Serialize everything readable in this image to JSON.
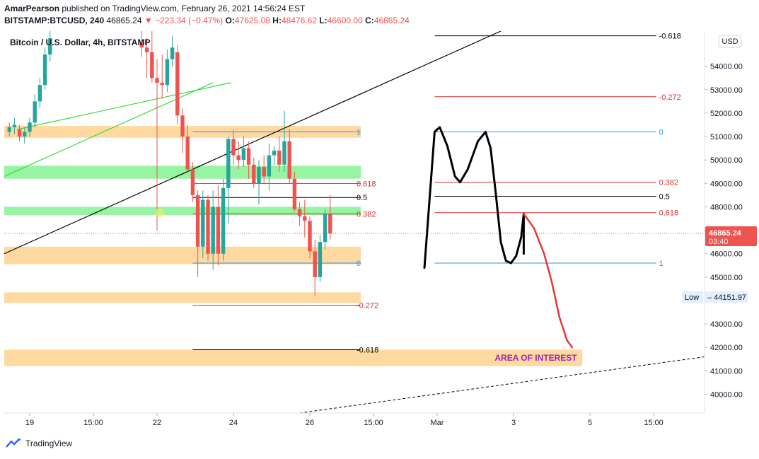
{
  "header": {
    "publisher_line_user": "AmarPearson",
    "publisher_line_rest": " published on TradingView.com, February 26, 2021 14:56:24 EST",
    "symbol": "BITSTAMP:BTCUSD, 240",
    "last": "46865.24",
    "arrow": "▼",
    "change": "−223.34 (−0.47%)",
    "o_label": "O:",
    "o": "47625.08",
    "h_label": "H:",
    "h": "48476.62",
    "l_label": "L:",
    "l": "46600.00",
    "c_label": "C:",
    "c": "46865.24"
  },
  "legend_title": "Bitcoin / U.S. Dollar, 4h, BITSTAMP",
  "footer": {
    "brand": "TradingView"
  },
  "colors": {
    "up": "#26a69a",
    "down": "#ef5350",
    "zone_orange": "#ffcc80",
    "zone_green": "#69f07a",
    "fib_blue": "#2196f3",
    "fib_red": "#d32f2f"
  },
  "chart_data": {
    "type": "candlestick",
    "currency": "USD",
    "y_ticks": [
      "40000.00",
      "41000.00",
      "42000.00",
      "43000.00",
      "45000.00",
      "46000.00",
      "47000.00",
      "48000.00",
      "49000.00",
      "50000.00",
      "51000.00",
      "52000.00",
      "53000.00",
      "54000.00"
    ],
    "ylim": [
      39200,
      55500
    ],
    "x_ticks": [
      {
        "label": "19",
        "x": 2.0
      },
      {
        "label": "15:00",
        "x": 4.5
      },
      {
        "label": "22",
        "x": 7.0
      },
      {
        "label": "24",
        "x": 10.0
      },
      {
        "label": "26",
        "x": 13.0
      },
      {
        "label": "15:00",
        "x": 15.5
      },
      {
        "label": "Mar",
        "x": 18.0
      },
      {
        "label": "3",
        "x": 21.0
      },
      {
        "label": "5",
        "x": 24.0
      },
      {
        "label": "15:00",
        "x": 26.5
      }
    ],
    "xlim": [
      1.0,
      28.5
    ],
    "candles": [
      {
        "x": 1.2,
        "o": 51200,
        "h": 51600,
        "l": 51000,
        "c": 51400
      },
      {
        "x": 1.4,
        "o": 51400,
        "h": 51800,
        "l": 51100,
        "c": 51500
      },
      {
        "x": 1.6,
        "o": 51300,
        "h": 51500,
        "l": 50800,
        "c": 51000
      },
      {
        "x": 1.8,
        "o": 51000,
        "h": 51400,
        "l": 50700,
        "c": 51200
      },
      {
        "x": 2.0,
        "o": 51200,
        "h": 51800,
        "l": 51000,
        "c": 51600
      },
      {
        "x": 2.2,
        "o": 51600,
        "h": 52800,
        "l": 51400,
        "c": 52500
      },
      {
        "x": 2.4,
        "o": 52500,
        "h": 53500,
        "l": 52200,
        "c": 53200
      },
      {
        "x": 2.6,
        "o": 53200,
        "h": 54800,
        "l": 53000,
        "c": 54500
      },
      {
        "x": 2.8,
        "o": 54500,
        "h": 55500,
        "l": 54200,
        "c": 55200
      },
      {
        "x": 6.4,
        "o": 55000,
        "h": 55500,
        "l": 54400,
        "c": 54800
      },
      {
        "x": 6.6,
        "o": 54800,
        "h": 55200,
        "l": 53500,
        "c": 54600
      },
      {
        "x": 6.8,
        "o": 54600,
        "h": 55500,
        "l": 53300,
        "c": 53500
      },
      {
        "x": 7.0,
        "o": 53500,
        "h": 54300,
        "l": 47000,
        "c": 53300
      },
      {
        "x": 7.2,
        "o": 53300,
        "h": 54500,
        "l": 52600,
        "c": 53200
      },
      {
        "x": 7.4,
        "o": 53200,
        "h": 54700,
        "l": 52900,
        "c": 54300
      },
      {
        "x": 7.6,
        "o": 54300,
        "h": 55300,
        "l": 54000,
        "c": 54800
      },
      {
        "x": 7.8,
        "o": 54600,
        "h": 54900,
        "l": 51500,
        "c": 51900
      },
      {
        "x": 8.0,
        "o": 51900,
        "h": 52200,
        "l": 50300,
        "c": 51000
      },
      {
        "x": 8.2,
        "o": 51000,
        "h": 51500,
        "l": 49500,
        "c": 49600
      },
      {
        "x": 8.4,
        "o": 49600,
        "h": 49900,
        "l": 48200,
        "c": 48500
      },
      {
        "x": 8.6,
        "o": 48500,
        "h": 48700,
        "l": 45000,
        "c": 46300
      },
      {
        "x": 8.8,
        "o": 46300,
        "h": 48700,
        "l": 45800,
        "c": 48300
      },
      {
        "x": 9.0,
        "o": 48300,
        "h": 48500,
        "l": 45700,
        "c": 46000
      },
      {
        "x": 9.2,
        "o": 46000,
        "h": 48700,
        "l": 45300,
        "c": 48000
      },
      {
        "x": 9.4,
        "o": 48000,
        "h": 48900,
        "l": 45500,
        "c": 46000
      },
      {
        "x": 9.6,
        "o": 46000,
        "h": 49200,
        "l": 45700,
        "c": 48800
      },
      {
        "x": 9.8,
        "o": 48800,
        "h": 51000,
        "l": 47300,
        "c": 50900
      },
      {
        "x": 10.0,
        "o": 50900,
        "h": 51300,
        "l": 49800,
        "c": 50200
      },
      {
        "x": 10.2,
        "o": 50200,
        "h": 50800,
        "l": 49600,
        "c": 50000
      },
      {
        "x": 10.4,
        "o": 50000,
        "h": 51000,
        "l": 49700,
        "c": 50500
      },
      {
        "x": 10.6,
        "o": 50500,
        "h": 50800,
        "l": 49200,
        "c": 49800
      },
      {
        "x": 10.8,
        "o": 49800,
        "h": 50100,
        "l": 48800,
        "c": 49000
      },
      {
        "x": 11.0,
        "o": 49000,
        "h": 50000,
        "l": 48100,
        "c": 49700
      },
      {
        "x": 11.2,
        "o": 49700,
        "h": 50200,
        "l": 49000,
        "c": 49300
      },
      {
        "x": 11.4,
        "o": 49300,
        "h": 50700,
        "l": 48700,
        "c": 50200
      },
      {
        "x": 11.6,
        "o": 50200,
        "h": 50600,
        "l": 49800,
        "c": 50400
      },
      {
        "x": 11.8,
        "o": 50400,
        "h": 51000,
        "l": 49500,
        "c": 49800
      },
      {
        "x": 12.0,
        "o": 49800,
        "h": 52100,
        "l": 49500,
        "c": 50800
      },
      {
        "x": 12.2,
        "o": 50800,
        "h": 51300,
        "l": 49000,
        "c": 49200
      },
      {
        "x": 12.4,
        "o": 49200,
        "h": 49500,
        "l": 47800,
        "c": 47900
      },
      {
        "x": 12.6,
        "o": 47900,
        "h": 48200,
        "l": 47200,
        "c": 47600
      },
      {
        "x": 12.8,
        "o": 47600,
        "h": 48300,
        "l": 46700,
        "c": 47400
      },
      {
        "x": 13.0,
        "o": 47400,
        "h": 47600,
        "l": 45800,
        "c": 46100
      },
      {
        "x": 13.2,
        "o": 46100,
        "h": 46600,
        "l": 44200,
        "c": 45000
      },
      {
        "x": 13.4,
        "o": 45000,
        "h": 46800,
        "l": 44800,
        "c": 46500
      },
      {
        "x": 13.6,
        "o": 46500,
        "h": 47900,
        "l": 46200,
        "c": 47700
      },
      {
        "x": 13.8,
        "o": 47700,
        "h": 48500,
        "l": 46600,
        "c": 46865
      }
    ],
    "zones": [
      {
        "color": "orange",
        "y1": 50950,
        "y2": 51450,
        "x1": 1.0,
        "x2": 15.0
      },
      {
        "color": "green",
        "y1": 49200,
        "y2": 49750,
        "x1": 1.0,
        "x2": 15.0
      },
      {
        "color": "green",
        "y1": 47650,
        "y2": 48000,
        "x1": 1.0,
        "x2": 15.0
      },
      {
        "color": "orange",
        "y1": 45550,
        "y2": 46300,
        "x1": 1.0,
        "x2": 15.0
      },
      {
        "color": "orange",
        "y1": 43900,
        "y2": 44350,
        "x1": 1.0,
        "x2": 15.0
      },
      {
        "color": "orange",
        "y1": 41200,
        "y2": 41900,
        "x1": 1.0,
        "x2": 23.7
      }
    ],
    "fib_left": [
      {
        "label": "1",
        "y": 51200,
        "color": "blue"
      },
      {
        "label": "0.618",
        "y": 49000,
        "color": "red"
      },
      {
        "label": "0.5",
        "y": 48400,
        "color": "black"
      },
      {
        "label": "0.382",
        "y": 47700,
        "color": "red"
      },
      {
        "label": "0",
        "y": 45600,
        "color": "blue"
      },
      {
        "label": "-0.272",
        "y": 43800,
        "color": "red"
      },
      {
        "label": "-0.618",
        "y": 41900,
        "color": "black"
      }
    ],
    "fib_right": [
      {
        "label": "-0.618",
        "y": 55300,
        "color": "black"
      },
      {
        "label": "-0.272",
        "y": 52700,
        "color": "red"
      },
      {
        "label": "0",
        "y": 51200,
        "color": "blue"
      },
      {
        "label": "0.382",
        "y": 49050,
        "color": "red"
      },
      {
        "label": "0.5",
        "y": 48450,
        "color": "black"
      },
      {
        "label": "0.618",
        "y": 47750,
        "color": "red"
      },
      {
        "label": "1",
        "y": 45600,
        "color": "blue"
      }
    ],
    "annotation_text": "AREA OF INTEREST",
    "last_price": {
      "label": "46865.24",
      "countdown": "03:40",
      "y": 46865.24
    },
    "low_marker": {
      "label": "Low",
      "value": "44151.97",
      "y": 44151.97
    },
    "m_pattern": [
      [
        17.5,
        45400
      ],
      [
        17.7,
        48300
      ],
      [
        17.9,
        51200
      ],
      [
        18.1,
        51400
      ],
      [
        18.4,
        50600
      ],
      [
        18.7,
        49300
      ],
      [
        18.9,
        49050
      ],
      [
        19.2,
        49600
      ],
      [
        19.6,
        50800
      ],
      [
        19.9,
        51200
      ],
      [
        20.1,
        50500
      ],
      [
        20.3,
        48600
      ],
      [
        20.5,
        46500
      ],
      [
        20.7,
        45700
      ],
      [
        20.9,
        45600
      ],
      [
        21.1,
        45900
      ],
      [
        21.3,
        46700
      ],
      [
        21.4,
        47700
      ],
      [
        21.4,
        46000
      ]
    ],
    "projection": [
      [
        21.4,
        47700
      ],
      [
        21.8,
        47100
      ],
      [
        22.2,
        46000
      ],
      [
        22.5,
        44800
      ],
      [
        22.8,
        43300
      ],
      [
        23.1,
        42300
      ],
      [
        23.3,
        42000
      ]
    ]
  }
}
